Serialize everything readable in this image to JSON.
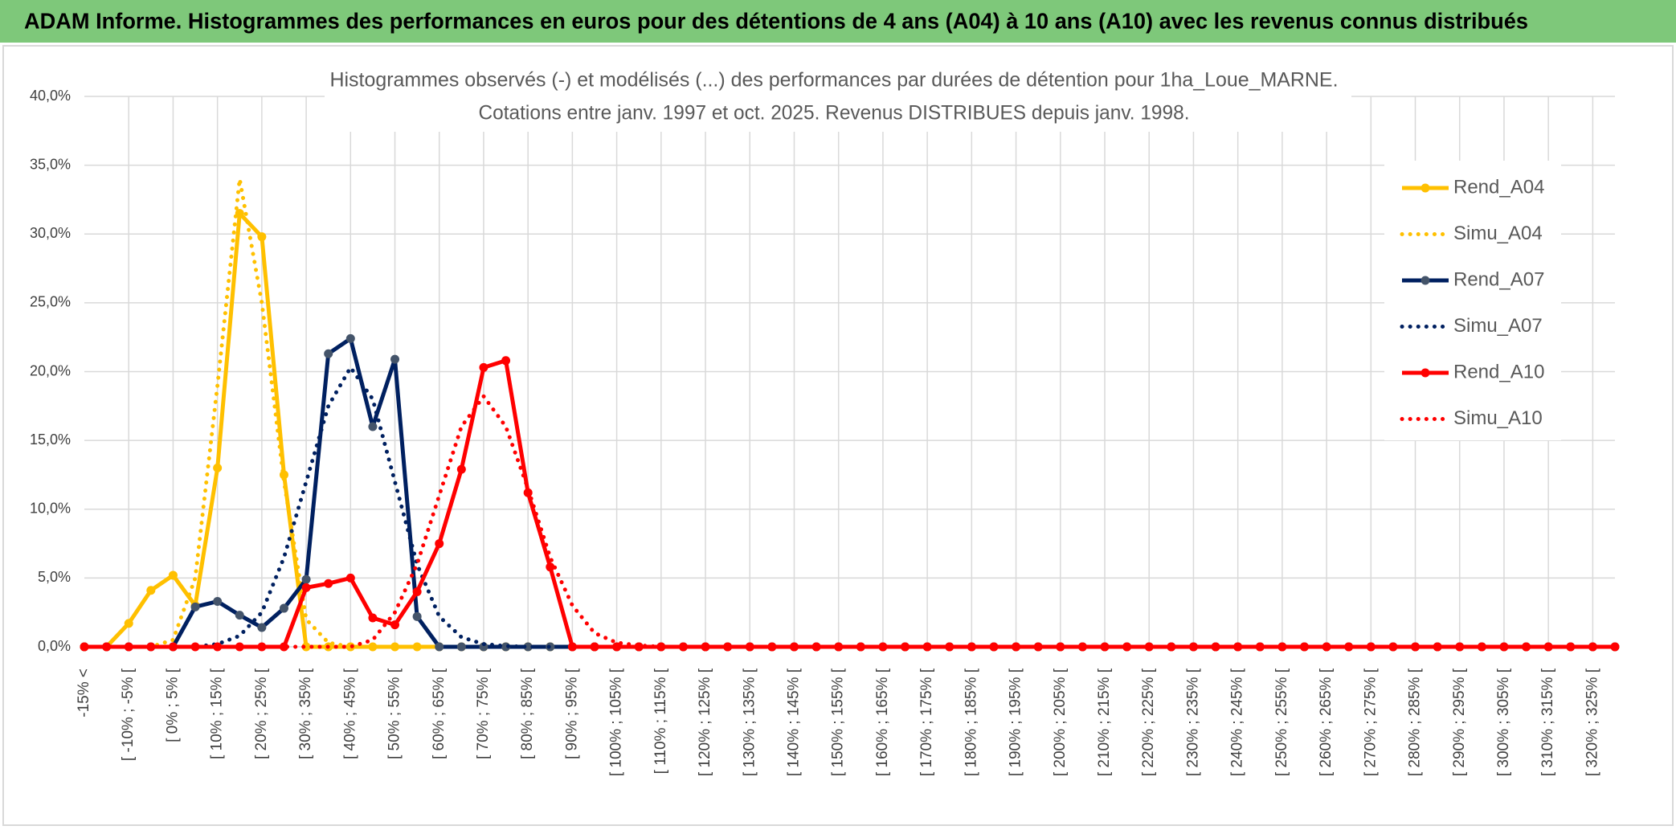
{
  "banner": {
    "title": "ADAM Informe. Histogrammes des performances en euros pour des détentions de 4 ans (A04) à 10 ans (A10) avec les revenus connus distribués"
  },
  "chart_data": {
    "type": "line",
    "title": [
      "Histogrammes observés (-) et modélisés (...) des performances par durées de détention pour 1ha_Loue_MARNE.",
      "Cotations entre janv. 1997 et oct. 2025. Revenus DISTRIBUES depuis janv. 1998."
    ],
    "categories": [
      "-15% <",
      null,
      "[ -10% ; -5% [",
      null,
      "[ 0% ; 5% [",
      null,
      "[ 10% ; 15% [",
      null,
      "[ 20% ; 25% [",
      null,
      "[ 30% ; 35% [",
      null,
      "[ 40% ; 45% [",
      null,
      "[ 50% ; 55% [",
      null,
      "[ 60% ; 65% [",
      null,
      "[ 70% ; 75% [",
      null,
      "[ 80% ; 85% [",
      null,
      "[ 90% ; 95% [",
      null,
      "[ 100% ; 105% [",
      null,
      "[ 110% ; 115% [",
      null,
      "[ 120% ; 125% [",
      null,
      "[ 130% ; 135% [",
      null,
      "[ 140% ; 145% [",
      null,
      "[ 150% ; 155% [",
      null,
      "[ 160% ; 165% [",
      null,
      "[ 170% ; 175% [",
      null,
      "[ 180% ; 185% [",
      null,
      "[ 190% ; 195% [",
      null,
      "[ 200% ; 205% [",
      null,
      "[ 210% ; 215% [",
      null,
      "[ 220% ; 225% [",
      null,
      "[ 230% ; 235% [",
      null,
      "[ 240% ; 245% [",
      null,
      "[ 250% ; 255% [",
      null,
      "[ 260% ; 265% [",
      null,
      "[ 270% ; 275% [",
      null,
      "[ 280% ; 285% [",
      null,
      "[ 290% ; 295% [",
      null,
      "[ 300% ; 305% [",
      null,
      "[ 310% ; 315% [",
      null,
      "[ 320% ; 325% [",
      null
    ],
    "series": [
      {
        "name": "Rend_A04",
        "color": "#ffc000",
        "line_style": "solid",
        "markers": true,
        "marker_color": "#ffc000",
        "values": [
          0,
          0,
          1.7,
          4.1,
          5.2,
          3.0,
          13.0,
          31.5,
          29.8,
          12.5,
          0,
          0,
          0,
          0,
          0,
          0,
          0,
          0,
          0,
          0,
          0,
          0,
          0,
          0,
          0,
          0,
          0,
          0,
          0,
          0,
          0,
          0,
          0,
          0,
          0,
          0,
          0,
          0,
          0,
          0,
          0,
          0,
          0,
          0,
          0,
          0,
          0,
          0,
          0,
          0,
          0,
          0,
          0,
          0,
          0,
          0,
          0,
          0,
          0,
          0,
          0,
          0,
          0,
          0,
          0,
          0,
          0,
          0,
          0,
          0
        ]
      },
      {
        "name": "Simu_A04",
        "color": "#ffc000",
        "line_style": "dotted",
        "markers": false,
        "values": [
          0,
          0,
          0,
          0,
          0.5,
          5,
          19,
          34,
          25,
          12,
          2,
          0.3,
          0,
          0,
          0,
          0,
          0,
          0,
          0,
          0,
          0,
          0,
          0,
          0,
          0,
          0,
          0,
          0,
          0,
          0,
          0,
          0,
          0,
          0,
          0,
          0,
          0,
          0,
          0,
          0,
          0,
          0,
          0,
          0,
          0,
          0,
          0,
          0,
          0,
          0,
          0,
          0,
          0,
          0,
          0,
          0,
          0,
          0,
          0,
          0,
          0,
          0,
          0,
          0,
          0,
          0,
          0,
          0,
          0,
          0
        ]
      },
      {
        "name": "Rend_A07",
        "color": "#002060",
        "line_style": "solid",
        "markers": true,
        "marker_color": "#44546a",
        "values": [
          0,
          0,
          0,
          0,
          0,
          2.9,
          3.3,
          2.3,
          1.4,
          2.8,
          4.9,
          21.3,
          22.4,
          16.0,
          20.9,
          2.2,
          0,
          0,
          0,
          0,
          0,
          0,
          0,
          0,
          0,
          0,
          0,
          0,
          0,
          0,
          0,
          0,
          0,
          0,
          0,
          0,
          0,
          0,
          0,
          0,
          0,
          0,
          0,
          0,
          0,
          0,
          0,
          0,
          0,
          0,
          0,
          0,
          0,
          0,
          0,
          0,
          0,
          0,
          0,
          0,
          0,
          0,
          0,
          0,
          0,
          0,
          0,
          0,
          0,
          0
        ]
      },
      {
        "name": "Simu_A07",
        "color": "#002060",
        "line_style": "dotted",
        "markers": false,
        "values": [
          0,
          0,
          0,
          0,
          0,
          0,
          0.2,
          0.8,
          2.5,
          6.5,
          12,
          17.5,
          20.3,
          18,
          12,
          6,
          2.2,
          0.7,
          0.2,
          0.05,
          0,
          0,
          0,
          0,
          0,
          0,
          0,
          0,
          0,
          0,
          0,
          0,
          0,
          0,
          0,
          0,
          0,
          0,
          0,
          0,
          0,
          0,
          0,
          0,
          0,
          0,
          0,
          0,
          0,
          0,
          0,
          0,
          0,
          0,
          0,
          0,
          0,
          0,
          0,
          0,
          0,
          0,
          0,
          0,
          0,
          0,
          0,
          0,
          0,
          0
        ]
      },
      {
        "name": "Rend_A10",
        "color": "#ff0000",
        "line_style": "solid",
        "markers": true,
        "marker_color": "#ff0000",
        "values": [
          0,
          0,
          0,
          0,
          0,
          0,
          0,
          0,
          0,
          0,
          4.3,
          4.6,
          5.0,
          2.1,
          1.6,
          4.0,
          7.5,
          12.9,
          20.3,
          20.8,
          11.2,
          5.8,
          0,
          0,
          0,
          0,
          0,
          0,
          0,
          0,
          0,
          0,
          0,
          0,
          0,
          0,
          0,
          0,
          0,
          0,
          0,
          0,
          0,
          0,
          0,
          0,
          0,
          0,
          0,
          0,
          0,
          0,
          0,
          0,
          0,
          0,
          0,
          0,
          0,
          0,
          0,
          0,
          0,
          0,
          0,
          0,
          0,
          0,
          0,
          0
        ]
      },
      {
        "name": "Simu_A10",
        "color": "#ff0000",
        "line_style": "dotted",
        "markers": false,
        "values": [
          0,
          0,
          0,
          0,
          0,
          0,
          0,
          0,
          0,
          0,
          0,
          0,
          0,
          0.5,
          2.5,
          6,
          11,
          16,
          18.2,
          16,
          11.5,
          6.5,
          3,
          1,
          0.3,
          0.1,
          0,
          0,
          0,
          0,
          0,
          0,
          0,
          0,
          0,
          0,
          0,
          0,
          0,
          0,
          0,
          0,
          0,
          0,
          0,
          0,
          0,
          0,
          0,
          0,
          0,
          0,
          0,
          0,
          0,
          0,
          0,
          0,
          0,
          0,
          0,
          0,
          0,
          0,
          0,
          0,
          0,
          0,
          0,
          0
        ]
      }
    ],
    "ylim": [
      0,
      40
    ],
    "yticks": [
      {
        "value": 0,
        "label": "0,0%"
      },
      {
        "value": 5,
        "label": "5,0%"
      },
      {
        "value": 10,
        "label": "10,0%"
      },
      {
        "value": 15,
        "label": "15,0%"
      },
      {
        "value": 20,
        "label": "20,0%"
      },
      {
        "value": 25,
        "label": "25,0%"
      },
      {
        "value": 30,
        "label": "30,0%"
      },
      {
        "value": 35,
        "label": "35,0%"
      },
      {
        "value": 40,
        "label": "40,0%"
      }
    ],
    "grid": true,
    "legend": "upper right"
  }
}
